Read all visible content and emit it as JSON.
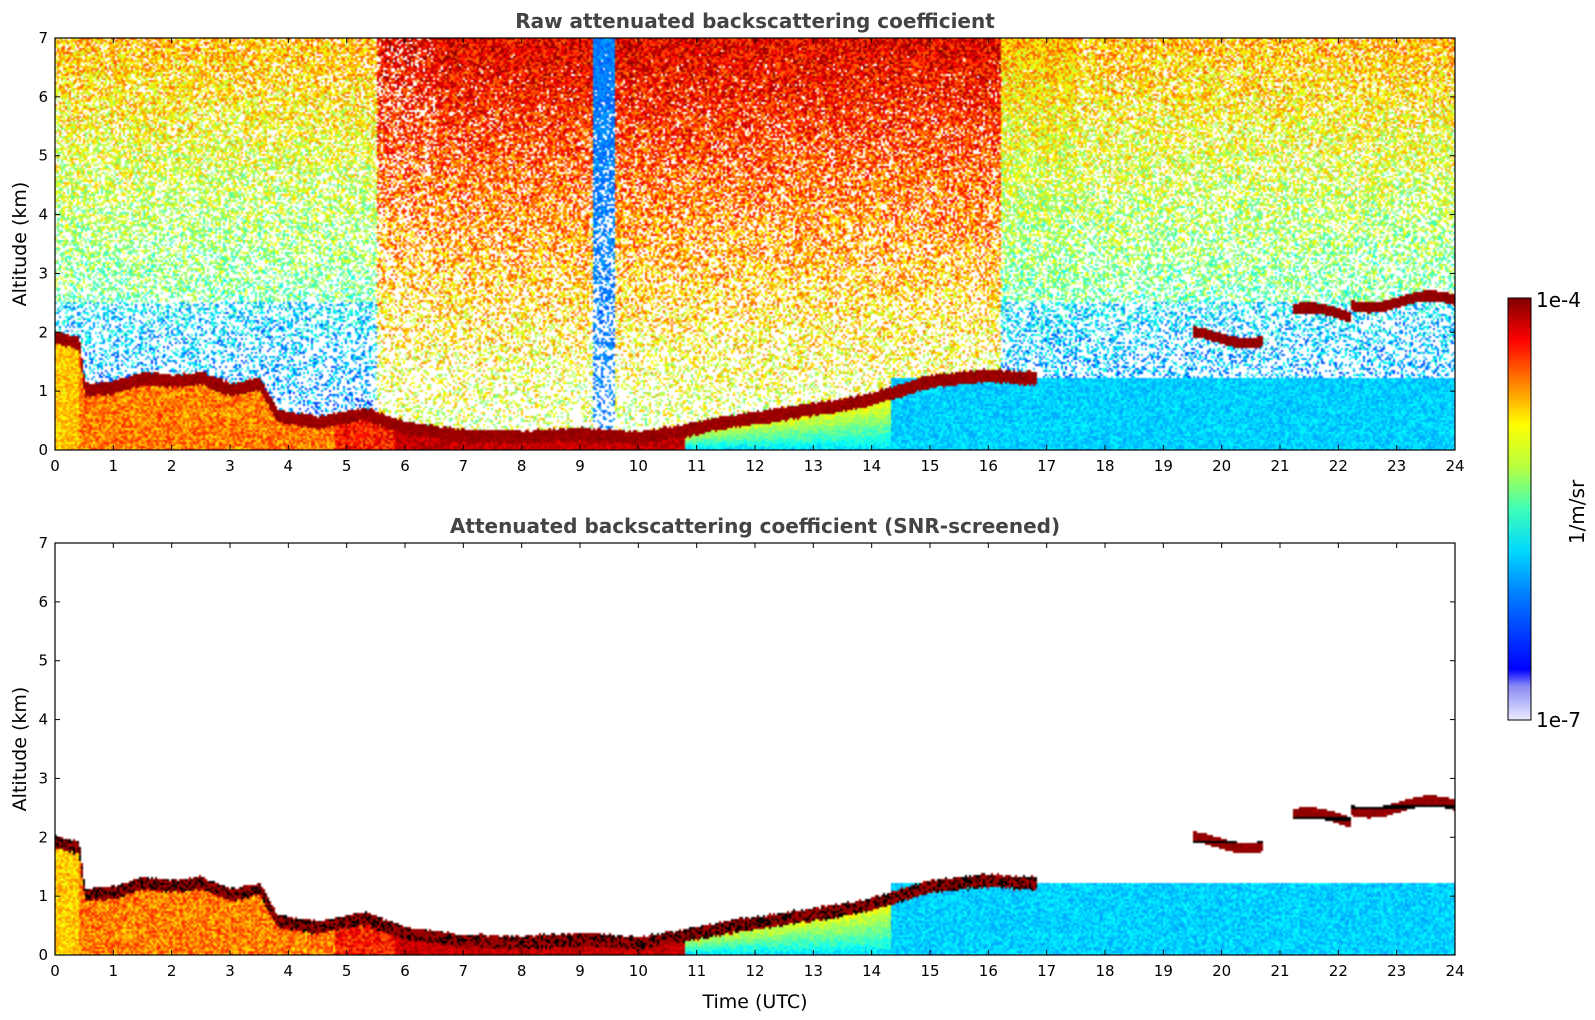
{
  "chart_data": [
    {
      "type": "heatmap",
      "title": "Raw attenuated backscattering coefficient",
      "xlabel": "",
      "ylabel": "Altitude (km)",
      "xlim": [
        0,
        24
      ],
      "ylim": [
        0,
        7
      ],
      "x_ticks": [
        "0",
        "1",
        "2",
        "3",
        "4",
        "5",
        "6",
        "7",
        "8",
        "9",
        "10",
        "11",
        "12",
        "13",
        "14",
        "15",
        "16",
        "17",
        "18",
        "19",
        "20",
        "21",
        "22",
        "23",
        "24"
      ],
      "y_ticks": [
        "0",
        "1",
        "2",
        "3",
        "4",
        "5",
        "6",
        "7"
      ],
      "color_scale": "log",
      "grid": false,
      "layers": {
        "boundary_layer_top_km": [
          [
            0,
            1.9
          ],
          [
            0.4,
            1.8
          ],
          [
            0.5,
            1.0
          ],
          [
            1,
            1.05
          ],
          [
            1.5,
            1.2
          ],
          [
            2,
            1.15
          ],
          [
            2.5,
            1.2
          ],
          [
            3,
            1.0
          ],
          [
            3.5,
            1.1
          ],
          [
            3.8,
            0.55
          ],
          [
            4.5,
            0.45
          ],
          [
            5.3,
            0.6
          ],
          [
            6,
            0.35
          ],
          [
            7,
            0.22
          ],
          [
            8,
            0.2
          ],
          [
            9,
            0.25
          ],
          [
            10,
            0.18
          ],
          [
            10.7,
            0.3
          ],
          [
            11.5,
            0.45
          ],
          [
            12.5,
            0.6
          ],
          [
            13.5,
            0.75
          ],
          [
            14,
            0.85
          ],
          [
            14.5,
            1.0
          ],
          [
            15,
            1.15
          ],
          [
            15.5,
            1.2
          ],
          [
            16,
            1.25
          ],
          [
            16.6,
            1.2
          ]
        ],
        "elevated_cloud_layers": [
          {
            "t_start": 19.5,
            "t_end": 20.7,
            "alt_km": 1.9
          },
          {
            "t_start": 21.2,
            "t_end": 22.2,
            "alt_km": 2.3
          },
          {
            "t_start": 22.2,
            "t_end": 24,
            "alt_km": 2.5
          }
        ]
      }
    },
    {
      "type": "heatmap",
      "title": "Attenuated backscattering coefficient (SNR-screened)",
      "xlabel": "Time (UTC)",
      "ylabel": "Altitude (km)",
      "xlim": [
        0,
        24
      ],
      "ylim": [
        0,
        7
      ],
      "x_ticks": [
        "0",
        "1",
        "2",
        "3",
        "4",
        "5",
        "6",
        "7",
        "8",
        "9",
        "10",
        "11",
        "12",
        "13",
        "14",
        "15",
        "16",
        "17",
        "18",
        "19",
        "20",
        "21",
        "22",
        "23",
        "24"
      ],
      "y_ticks": [
        "0",
        "1",
        "2",
        "3",
        "4",
        "5",
        "6",
        "7"
      ],
      "color_scale": "log",
      "grid": false
    }
  ],
  "colorbar": {
    "label": "1/m/sr",
    "max_label": "1e-4",
    "min_label": "1e-7",
    "colormap": "jet",
    "colors": [
      "#e6e6fa",
      "#0000ff",
      "#00ffff",
      "#ffff00",
      "#ff0000",
      "#800000"
    ]
  }
}
